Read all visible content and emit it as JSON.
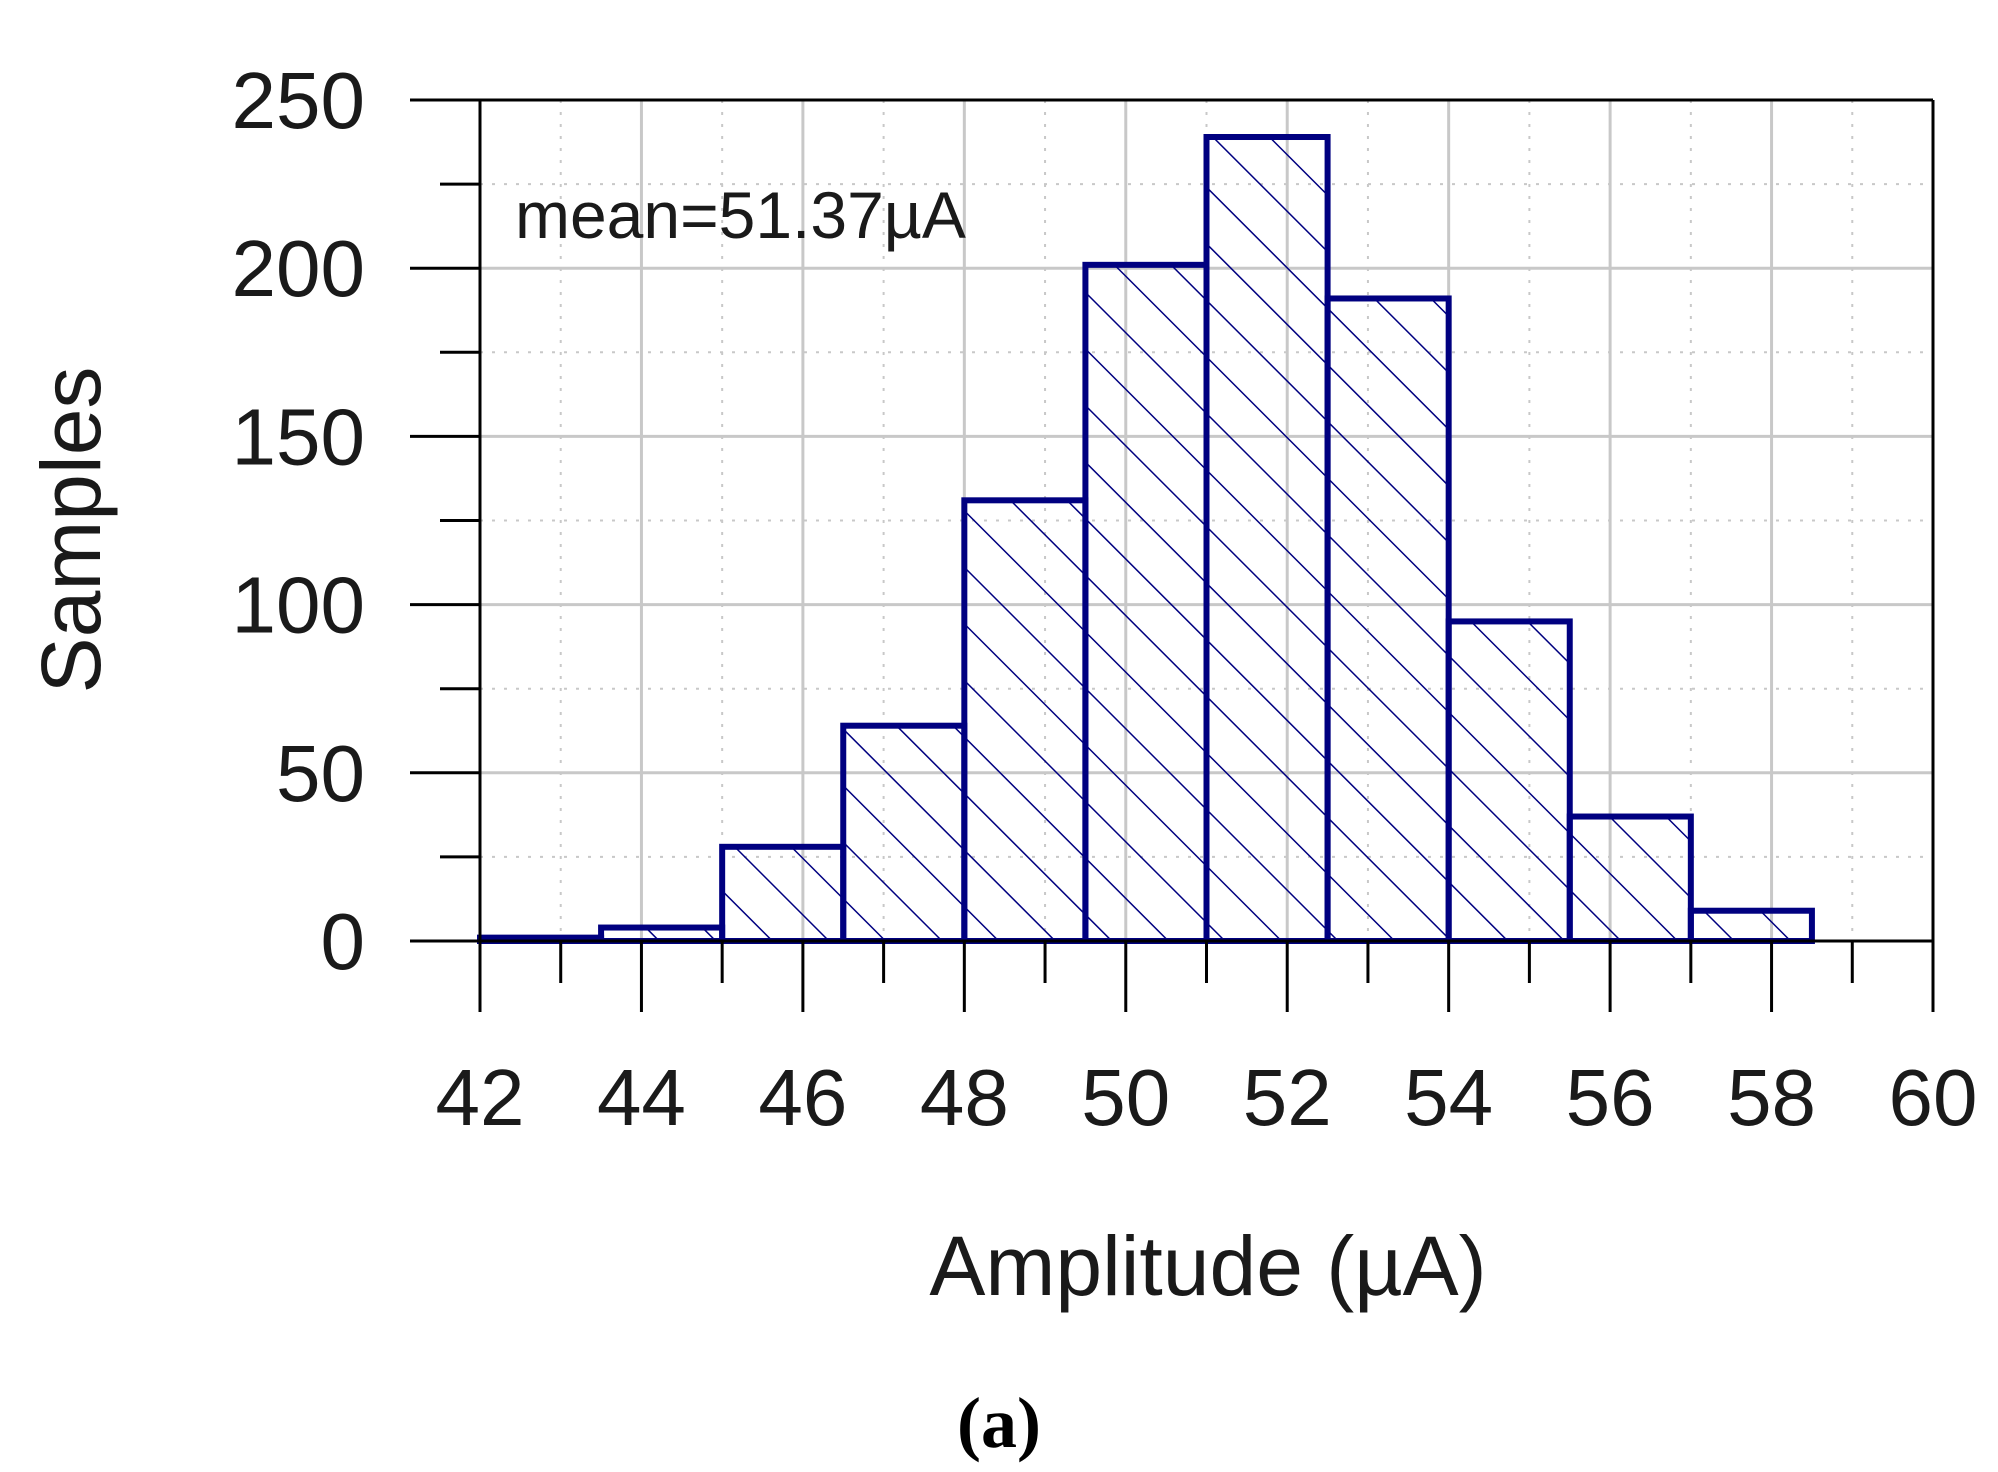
{
  "chart_data": {
    "type": "bar",
    "subtype": "histogram",
    "x_axis": {
      "label": "Amplitude (µA)",
      "range": [
        42,
        60
      ],
      "ticks": [
        "42",
        "44",
        "46",
        "48",
        "50",
        "52",
        "54",
        "56",
        "58",
        "60"
      ]
    },
    "y_axis": {
      "label": "Samples",
      "range": [
        0,
        250
      ],
      "ticks": [
        "0",
        "50",
        "100",
        "150",
        "200",
        "250"
      ]
    },
    "bins": [
      {
        "start": 42.0,
        "end": 43.5,
        "count": 1
      },
      {
        "start": 43.5,
        "end": 45.0,
        "count": 4
      },
      {
        "start": 45.0,
        "end": 46.5,
        "count": 28
      },
      {
        "start": 46.5,
        "end": 48.0,
        "count": 64
      },
      {
        "start": 48.0,
        "end": 49.5,
        "count": 131
      },
      {
        "start": 49.5,
        "end": 51.0,
        "count": 201
      },
      {
        "start": 51.0,
        "end": 52.5,
        "count": 239
      },
      {
        "start": 52.5,
        "end": 54.0,
        "count": 191
      },
      {
        "start": 54.0,
        "end": 55.5,
        "count": 95
      },
      {
        "start": 55.5,
        "end": 57.0,
        "count": 37
      },
      {
        "start": 57.0,
        "end": 58.5,
        "count": 9
      }
    ],
    "annotation": "mean=51.37µA",
    "grid": true,
    "colors": {
      "bar_stroke": "#000080",
      "hatch": "#000080",
      "grid": "#c8c8c8"
    }
  },
  "caption": "(a)"
}
